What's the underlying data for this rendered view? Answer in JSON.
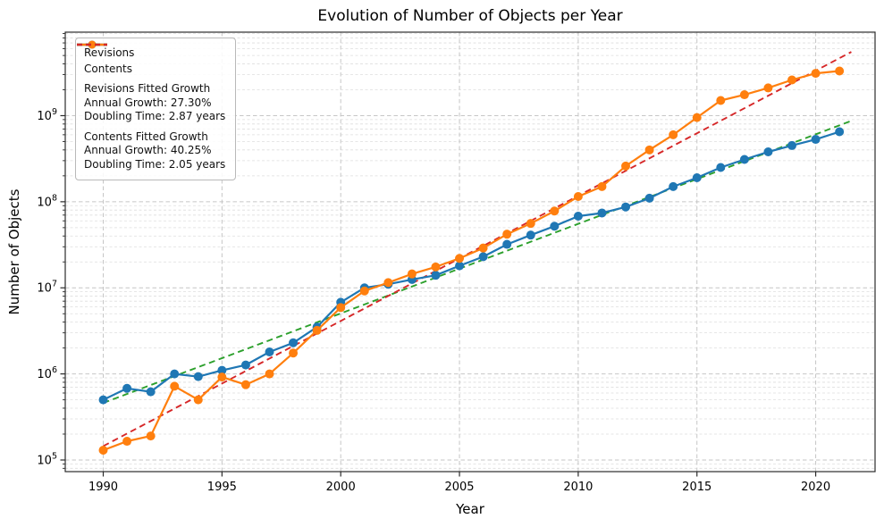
{
  "chart_data": {
    "type": "line",
    "title": "Evolution of Number of Objects per Year",
    "xlabel": "Year",
    "ylabel": "Number of Objects",
    "grid": true,
    "y_scale": "log",
    "xlim": [
      1988.4,
      2022.5
    ],
    "ylim_log": [
      4.865,
      9.97
    ],
    "x_ticks": [
      1990,
      1995,
      2000,
      2005,
      2010,
      2015,
      2020
    ],
    "y_ticks_exponents": [
      5,
      6,
      7,
      8,
      9
    ],
    "years": [
      1990,
      1991,
      1992,
      1993,
      1994,
      1995,
      1996,
      1997,
      1998,
      1999,
      2000,
      2001,
      2002,
      2003,
      2004,
      2005,
      2006,
      2007,
      2008,
      2009,
      2010,
      2011,
      2012,
      2013,
      2014,
      2015,
      2016,
      2017,
      2018,
      2019,
      2020,
      2021
    ],
    "series": [
      {
        "name": "Revisions",
        "color": "#1f77b4",
        "values": [
          500000,
          680000,
          620000,
          1000000,
          930000,
          1100000,
          1270000,
          1800000,
          2300000,
          3500000,
          6800000,
          10000000,
          11000000,
          12500000,
          14000000,
          18000000,
          23000000,
          32000000,
          41000000,
          52000000,
          68000000,
          74000000,
          87000000,
          110000000,
          150000000,
          190000000,
          250000000,
          310000000,
          380000000,
          450000000,
          530000000,
          650000000
        ]
      },
      {
        "name": "Contents",
        "color": "#ff7f0e",
        "values": [
          130000,
          165000,
          190000,
          720000,
          500000,
          920000,
          750000,
          1000000,
          1750000,
          3200000,
          5900000,
          9200000,
          11500000,
          14500000,
          17500000,
          22000000,
          29000000,
          42000000,
          56000000,
          78000000,
          115000000,
          150000000,
          260000000,
          400000000,
          600000000,
          950000000,
          1500000000,
          1750000000,
          2100000000,
          2600000000,
          3100000000,
          3300000000
        ]
      }
    ],
    "fit_lines": [
      {
        "name": "Revisions Fitted Growth",
        "color": "#2ca02c",
        "annual_growth_pct": 27.3,
        "doubling_time_years": 2.87,
        "x_start": 1990,
        "y_start": 460000,
        "x_end": 2021.5,
        "y_end": 870000000
      },
      {
        "name": "Contents Fitted Growth",
        "color": "#d62728",
        "annual_growth_pct": 40.25,
        "doubling_time_years": 2.05,
        "x_start": 1990,
        "y_start": 145000,
        "x_end": 2021.5,
        "y_end": 5500000000
      }
    ],
    "legend": {
      "position": "upper-left",
      "entries": [
        {
          "sample": "line-marker",
          "color": "#1f77b4",
          "label_lines": [
            "Revisions"
          ]
        },
        {
          "sample": "line-marker",
          "color": "#ff7f0e",
          "label_lines": [
            "Contents"
          ]
        },
        {
          "sample": "dashed",
          "color": "#2ca02c",
          "label_lines": [
            "Revisions Fitted Growth",
            "Annual Growth: 27.30%",
            "Doubling Time: 2.87 years"
          ]
        },
        {
          "sample": "dashed",
          "color": "#d62728",
          "label_lines": [
            "Contents Fitted Growth",
            "Annual Growth: 40.25%",
            "Doubling Time: 2.05 years"
          ]
        }
      ]
    },
    "style": {
      "grid_major_color": "#c6c6c6",
      "grid_minor_color": "#dedede",
      "spine_color": "#2b2b2b",
      "background": "#ffffff"
    }
  }
}
